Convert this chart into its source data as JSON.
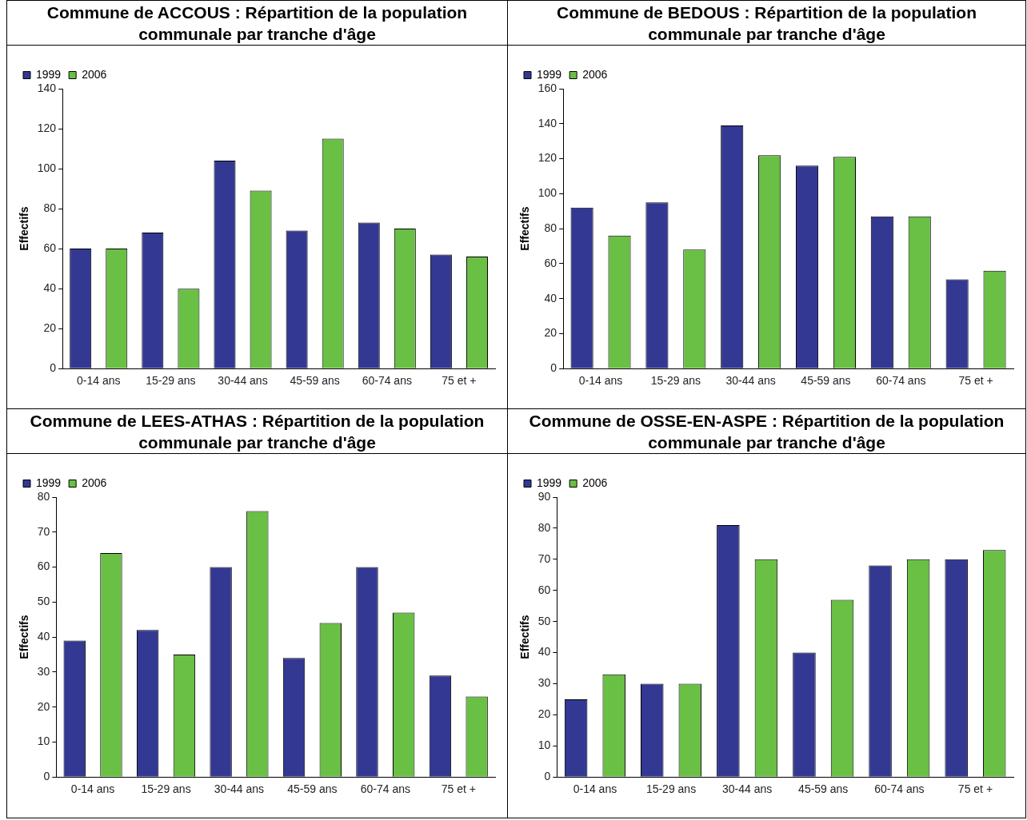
{
  "chart_data": [
    {
      "type": "bar",
      "title": "Commune de ACCOUS : Répartition de la population communale par tranche d'âge",
      "ylabel": "Effectifs",
      "categories": [
        "0-14 ans",
        "15-29 ans",
        "30-44 ans",
        "45-59 ans",
        "60-74 ans",
        "75 et +"
      ],
      "series": [
        {
          "name": "1999",
          "color": "#333893",
          "values": [
            60,
            68,
            104,
            69,
            73,
            57
          ]
        },
        {
          "name": "2006",
          "color": "#6abf45",
          "values": [
            60,
            40,
            89,
            115,
            70,
            56
          ]
        }
      ],
      "ylim": [
        0,
        140
      ],
      "yticks": [
        0,
        20,
        40,
        60,
        80,
        100,
        120,
        140
      ],
      "grid": false,
      "legend": "top left"
    },
    {
      "type": "bar",
      "title": "Commune de BEDOUS : Répartition de la population communale par tranche d'âge",
      "ylabel": "Effectifs",
      "categories": [
        "0-14 ans",
        "15-29 ans",
        "30-44 ans",
        "45-59 ans",
        "60-74 ans",
        "75 et +"
      ],
      "series": [
        {
          "name": "1999",
          "color": "#333893",
          "values": [
            92,
            95,
            139,
            116,
            87,
            51
          ]
        },
        {
          "name": "2006",
          "color": "#6abf45",
          "values": [
            76,
            68,
            122,
            121,
            87,
            56
          ]
        }
      ],
      "ylim": [
        0,
        160
      ],
      "yticks": [
        0,
        20,
        40,
        60,
        80,
        100,
        120,
        140,
        160
      ],
      "grid": false,
      "legend": "top left"
    },
    {
      "type": "bar",
      "title": "Commune de LEES-ATHAS : Répartition de la population communale par tranche d'âge",
      "ylabel": "Effectifs",
      "categories": [
        "0-14 ans",
        "15-29 ans",
        "30-44 ans",
        "45-59 ans",
        "60-74 ans",
        "75 et +"
      ],
      "series": [
        {
          "name": "1999",
          "color": "#333893",
          "values": [
            39,
            42,
            60,
            34,
            60,
            29
          ]
        },
        {
          "name": "2006",
          "color": "#6abf45",
          "values": [
            64,
            35,
            76,
            44,
            47,
            23
          ]
        }
      ],
      "ylim": [
        0,
        80
      ],
      "yticks": [
        0,
        10,
        20,
        30,
        40,
        50,
        60,
        70,
        80
      ],
      "grid": false,
      "legend": "top left"
    },
    {
      "type": "bar",
      "title": "Commune de OSSE-EN-ASPE : Répartition de la population communale par tranche d'âge",
      "ylabel": "Effectifs",
      "categories": [
        "0-14 ans",
        "15-29 ans",
        "30-44 ans",
        "45-59 ans",
        "60-74 ans",
        "75 et +"
      ],
      "series": [
        {
          "name": "1999",
          "color": "#333893",
          "values": [
            25,
            30,
            81,
            40,
            68,
            70
          ]
        },
        {
          "name": "2006",
          "color": "#6abf45",
          "values": [
            33,
            30,
            70,
            57,
            70,
            73
          ]
        }
      ],
      "ylim": [
        0,
        90
      ],
      "yticks": [
        0,
        10,
        20,
        30,
        40,
        50,
        60,
        70,
        80,
        90
      ],
      "grid": false,
      "legend": "top left"
    }
  ]
}
